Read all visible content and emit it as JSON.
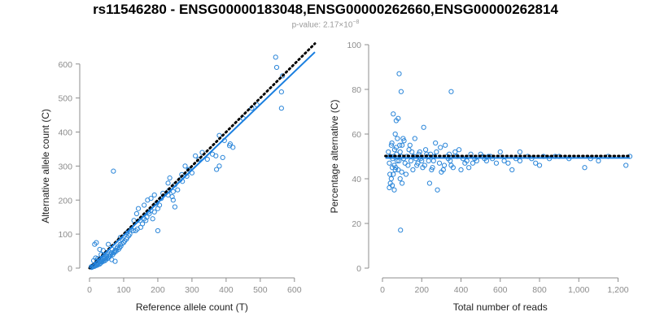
{
  "header": {
    "title": "rs11546280 - ENSG00000183048,ENSG00000262660,ENSG00000262814",
    "subtitle_prefix": "p-value: 2.17×10",
    "subtitle_exp": "−8"
  },
  "colors": {
    "points": "#2b86d9",
    "fit": "#1a7fe0",
    "reference": "#000000",
    "axis": "#8c8c8c"
  },
  "chart_data": [
    {
      "type": "scatter",
      "title": "",
      "xlabel": "Reference allele count (T)",
      "ylabel": "Alternative allele count (C)",
      "xlim": [
        0,
        660
      ],
      "ylim": [
        0,
        640
      ],
      "x_ticks": [
        0,
        100,
        200,
        300,
        400,
        500,
        600
      ],
      "y_ticks": [
        0,
        100,
        200,
        300,
        400,
        500,
        600
      ],
      "grid": false,
      "fit_line": {
        "from": [
          0,
          0
        ],
        "to": [
          660,
          635
        ]
      },
      "reference_line": {
        "from": [
          0,
          0
        ],
        "to": [
          660,
          660
        ],
        "style": "dotted"
      },
      "points": [
        [
          565,
          565
        ],
        [
          562,
          470
        ],
        [
          562,
          518
        ],
        [
          545,
          620
        ],
        [
          548,
          590
        ],
        [
          420,
          355
        ],
        [
          412,
          365
        ],
        [
          410,
          360
        ],
        [
          390,
          325
        ],
        [
          380,
          300
        ],
        [
          372,
          290
        ],
        [
          360,
          335
        ],
        [
          345,
          320
        ],
        [
          320,
          320
        ],
        [
          300,
          280
        ],
        [
          292,
          290
        ],
        [
          270,
          275
        ],
        [
          272,
          255
        ],
        [
          265,
          260
        ],
        [
          258,
          230
        ],
        [
          250,
          245
        ],
        [
          245,
          225
        ],
        [
          242,
          210
        ],
        [
          232,
          228
        ],
        [
          230,
          215
        ],
        [
          215,
          220
        ],
        [
          210,
          205
        ],
        [
          205,
          185
        ],
        [
          200,
          175
        ],
        [
          196,
          190
        ],
        [
          190,
          165
        ],
        [
          185,
          145
        ],
        [
          180,
          170
        ],
        [
          175,
          160
        ],
        [
          172,
          165
        ],
        [
          168,
          150
        ],
        [
          165,
          140
        ],
        [
          160,
          145
        ],
        [
          155,
          130
        ],
        [
          150,
          120
        ],
        [
          148,
          140
        ],
        [
          140,
          115
        ],
        [
          135,
          110
        ],
        [
          128,
          110
        ],
        [
          122,
          115
        ],
        [
          118,
          100
        ],
        [
          115,
          95
        ],
        [
          110,
          90
        ],
        [
          108,
          85
        ],
        [
          103,
          80
        ],
        [
          100,
          75
        ],
        [
          95,
          72
        ],
        [
          92,
          65
        ],
        [
          90,
          70
        ],
        [
          88,
          60
        ],
        [
          85,
          55
        ],
        [
          82,
          62
        ],
        [
          80,
          58
        ],
        [
          78,
          50
        ],
        [
          75,
          52
        ],
        [
          73,
          48
        ],
        [
          70,
          285
        ],
        [
          72,
          45
        ],
        [
          68,
          40
        ],
        [
          66,
          55
        ],
        [
          64,
          45
        ],
        [
          62,
          40
        ],
        [
          60,
          35
        ],
        [
          58,
          42
        ],
        [
          56,
          35
        ],
        [
          55,
          30
        ],
        [
          52,
          28
        ],
        [
          50,
          35
        ],
        [
          48,
          25
        ],
        [
          46,
          30
        ],
        [
          45,
          22
        ],
        [
          43,
          28
        ],
        [
          40,
          20
        ],
        [
          38,
          25
        ],
        [
          36,
          18
        ],
        [
          35,
          22
        ],
        [
          33,
          15
        ],
        [
          31,
          20
        ],
        [
          30,
          12
        ],
        [
          28,
          18
        ],
        [
          26,
          15
        ],
        [
          25,
          10
        ],
        [
          23,
          12
        ],
        [
          21,
          8
        ],
        [
          20,
          14
        ],
        [
          18,
          10
        ],
        [
          16,
          6
        ],
        [
          15,
          9
        ],
        [
          14,
          5
        ],
        [
          12,
          7
        ],
        [
          10,
          4
        ],
        [
          9,
          6
        ],
        [
          8,
          3
        ],
        [
          7,
          5
        ],
        [
          6,
          2
        ],
        [
          5,
          4
        ],
        [
          15,
          70
        ],
        [
          20,
          75
        ],
        [
          30,
          55
        ],
        [
          55,
          70
        ],
        [
          40,
          52
        ],
        [
          42,
          40
        ],
        [
          34,
          40
        ],
        [
          24,
          28
        ],
        [
          18,
          30
        ],
        [
          12,
          22
        ],
        [
          22,
          22
        ],
        [
          65,
          25
        ],
        [
          75,
          20
        ],
        [
          90,
          90
        ],
        [
          95,
          85
        ],
        [
          110,
          105
        ],
        [
          130,
          140
        ],
        [
          138,
          160
        ],
        [
          143,
          175
        ],
        [
          160,
          185
        ],
        [
          170,
          200
        ],
        [
          180,
          205
        ],
        [
          190,
          215
        ],
        [
          200,
          110
        ],
        [
          230,
          250
        ],
        [
          235,
          265
        ],
        [
          280,
          300
        ],
        [
          310,
          330
        ],
        [
          330,
          340
        ],
        [
          370,
          330
        ],
        [
          380,
          390
        ],
        [
          395,
          375
        ],
        [
          450,
          440
        ],
        [
          475,
          470
        ],
        [
          490,
          480
        ],
        [
          290,
          290
        ],
        [
          285,
          270
        ],
        [
          250,
          180
        ],
        [
          245,
          200
        ]
      ]
    },
    {
      "type": "scatter",
      "title": "",
      "xlabel": "Total number of reads",
      "ylabel": "Percentage alternative (C)",
      "xlim": [
        0,
        1260
      ],
      "ylim": [
        0,
        100
      ],
      "x_ticks": [
        0,
        200,
        400,
        600,
        800,
        1000,
        1200
      ],
      "x_tick_labels": [
        "0",
        "200",
        "400",
        "600",
        "800",
        "1,000",
        "1,200"
      ],
      "y_ticks": [
        0,
        20,
        40,
        60,
        80,
        100
      ],
      "grid": false,
      "fit_line": {
        "from": [
          15,
          49.3
        ],
        "to": [
          1260,
          49.3
        ]
      },
      "reference_line": {
        "from": [
          15,
          50.2
        ],
        "to": [
          1260,
          50.2
        ],
        "style": "dotted"
      },
      "points": [
        [
          85,
          87
        ],
        [
          95,
          79
        ],
        [
          350,
          79
        ],
        [
          55,
          69
        ],
        [
          80,
          67
        ],
        [
          70,
          66
        ],
        [
          65,
          60
        ],
        [
          105,
          58
        ],
        [
          110,
          57
        ],
        [
          100,
          55
        ],
        [
          70,
          54
        ],
        [
          90,
          52
        ],
        [
          95,
          50
        ],
        [
          75,
          48
        ],
        [
          60,
          46
        ],
        [
          50,
          45
        ],
        [
          65,
          44
        ],
        [
          55,
          42
        ],
        [
          45,
          40
        ],
        [
          40,
          38
        ],
        [
          50,
          37
        ],
        [
          35,
          36
        ],
        [
          60,
          35
        ],
        [
          80,
          44
        ],
        [
          90,
          40
        ],
        [
          100,
          38
        ],
        [
          120,
          42
        ],
        [
          130,
          46
        ],
        [
          150,
          52
        ],
        [
          140,
          55
        ],
        [
          160,
          50
        ],
        [
          170,
          49
        ],
        [
          180,
          47
        ],
        [
          190,
          52
        ],
        [
          200,
          48
        ],
        [
          210,
          63
        ],
        [
          215,
          46
        ],
        [
          225,
          51
        ],
        [
          230,
          50
        ],
        [
          240,
          38
        ],
        [
          250,
          44
        ],
        [
          255,
          45
        ],
        [
          260,
          48
        ],
        [
          270,
          56
        ],
        [
          280,
          35
        ],
        [
          290,
          47
        ],
        [
          300,
          43
        ],
        [
          310,
          44
        ],
        [
          320,
          55
        ],
        [
          330,
          50
        ],
        [
          340,
          51
        ],
        [
          350,
          46
        ],
        [
          360,
          45
        ],
        [
          370,
          52
        ],
        [
          380,
          50
        ],
        [
          390,
          53
        ],
        [
          400,
          44
        ],
        [
          420,
          47
        ],
        [
          430,
          48
        ],
        [
          440,
          45
        ],
        [
          460,
          47
        ],
        [
          480,
          48
        ],
        [
          500,
          51
        ],
        [
          520,
          49
        ],
        [
          540,
          50
        ],
        [
          560,
          49
        ],
        [
          580,
          47
        ],
        [
          600,
          52
        ],
        [
          640,
          47
        ],
        [
          660,
          44
        ],
        [
          680,
          49
        ],
        [
          700,
          48
        ],
        [
          740,
          50
        ],
        [
          780,
          47
        ],
        [
          800,
          46
        ],
        [
          820,
          50
        ],
        [
          850,
          49
        ],
        [
          900,
          50
        ],
        [
          950,
          49
        ],
        [
          1030,
          45
        ],
        [
          1060,
          49
        ],
        [
          1240,
          46
        ],
        [
          1260,
          50
        ],
        [
          30,
          52
        ],
        [
          35,
          47
        ],
        [
          40,
          50
        ],
        [
          45,
          55
        ],
        [
          38,
          42
        ],
        [
          48,
          56
        ],
        [
          52,
          49
        ],
        [
          58,
          50
        ],
        [
          62,
          53
        ],
        [
          68,
          45
        ],
        [
          72,
          51
        ],
        [
          76,
          58
        ],
        [
          84,
          48
        ],
        [
          88,
          55
        ],
        [
          92,
          17
        ],
        [
          98,
          43
        ],
        [
          108,
          49
        ],
        [
          115,
          47
        ],
        [
          125,
          50
        ],
        [
          135,
          53
        ],
        [
          145,
          48
        ],
        [
          155,
          44
        ],
        [
          165,
          58
        ],
        [
          175,
          46
        ],
        [
          185,
          51
        ],
        [
          195,
          49
        ],
        [
          205,
          45
        ],
        [
          220,
          53
        ],
        [
          235,
          48
        ],
        [
          245,
          51
        ],
        [
          265,
          50
        ],
        [
          275,
          52
        ],
        [
          295,
          54
        ],
        [
          315,
          46
        ],
        [
          335,
          49
        ],
        [
          345,
          48
        ],
        [
          410,
          49
        ],
        [
          450,
          51
        ],
        [
          470,
          49
        ],
        [
          510,
          50
        ],
        [
          530,
          48
        ],
        [
          550,
          50
        ],
        [
          620,
          48
        ],
        [
          700,
          52
        ],
        [
          760,
          49
        ],
        [
          880,
          50
        ],
        [
          1100,
          48
        ],
        [
          1150,
          50
        ]
      ]
    }
  ]
}
